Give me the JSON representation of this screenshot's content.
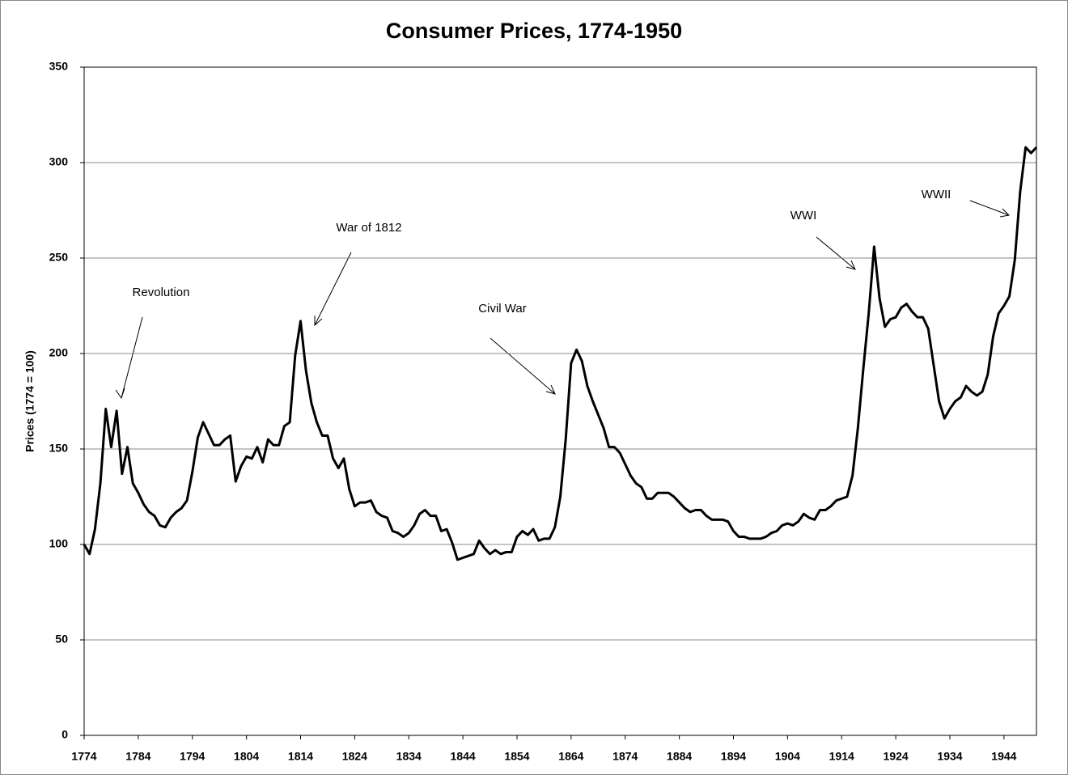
{
  "chart_data": {
    "type": "line",
    "title": "Consumer Prices, 1774-1950",
    "y_label": "Prices (1774 = 100)",
    "x": [
      1774,
      1775,
      1776,
      1777,
      1778,
      1779,
      1780,
      1781,
      1782,
      1783,
      1784,
      1785,
      1786,
      1787,
      1788,
      1789,
      1790,
      1791,
      1792,
      1793,
      1794,
      1795,
      1796,
      1797,
      1798,
      1799,
      1800,
      1801,
      1802,
      1803,
      1804,
      1805,
      1806,
      1807,
      1808,
      1809,
      1810,
      1811,
      1812,
      1813,
      1814,
      1815,
      1816,
      1817,
      1818,
      1819,
      1820,
      1821,
      1822,
      1823,
      1824,
      1825,
      1826,
      1827,
      1828,
      1829,
      1830,
      1831,
      1832,
      1833,
      1834,
      1835,
      1836,
      1837,
      1838,
      1839,
      1840,
      1841,
      1842,
      1843,
      1844,
      1845,
      1846,
      1847,
      1848,
      1849,
      1850,
      1851,
      1852,
      1853,
      1854,
      1855,
      1856,
      1857,
      1858,
      1859,
      1860,
      1861,
      1862,
      1863,
      1864,
      1865,
      1866,
      1867,
      1868,
      1869,
      1870,
      1871,
      1872,
      1873,
      1874,
      1875,
      1876,
      1877,
      1878,
      1879,
      1880,
      1881,
      1882,
      1883,
      1884,
      1885,
      1886,
      1887,
      1888,
      1889,
      1890,
      1891,
      1892,
      1893,
      1894,
      1895,
      1896,
      1897,
      1898,
      1899,
      1900,
      1901,
      1902,
      1903,
      1904,
      1905,
      1906,
      1907,
      1908,
      1909,
      1910,
      1911,
      1912,
      1913,
      1914,
      1915,
      1916,
      1917,
      1918,
      1919,
      1920,
      1921,
      1922,
      1923,
      1924,
      1925,
      1926,
      1927,
      1928,
      1929,
      1930,
      1931,
      1932,
      1933,
      1934,
      1935,
      1936,
      1937,
      1938,
      1939,
      1940,
      1941,
      1942,
      1943,
      1944,
      1945,
      1946,
      1947,
      1948,
      1949,
      1950
    ],
    "series": [
      {
        "name": "Consumer Prices",
        "color": "#000000",
        "values": [
          100,
          95,
          108,
          132,
          171,
          151,
          170,
          137,
          151,
          132,
          127,
          121,
          117,
          115,
          110,
          109,
          114,
          117,
          119,
          123,
          138,
          156,
          164,
          158,
          152,
          152,
          155,
          157,
          133,
          141,
          146,
          145,
          151,
          143,
          155,
          152,
          152,
          162,
          164,
          199,
          217,
          191,
          174,
          164,
          157,
          157,
          145,
          140,
          145,
          129,
          120,
          122,
          122,
          123,
          117,
          115,
          114,
          107,
          106,
          104,
          106,
          110,
          116,
          118,
          115,
          115,
          107,
          108,
          101,
          92,
          93,
          94,
          95,
          102,
          98,
          95,
          97,
          95,
          96,
          96,
          104,
          107,
          105,
          108,
          102,
          103,
          103,
          109,
          125,
          155,
          195,
          202,
          196,
          183,
          175,
          168,
          161,
          151,
          151,
          148,
          142,
          136,
          132,
          130,
          124,
          124,
          127,
          127,
          127,
          125,
          122,
          119,
          117,
          118,
          118,
          115,
          113,
          113,
          113,
          112,
          107,
          104,
          104,
          103,
          103,
          103,
          104,
          106,
          107,
          110,
          111,
          110,
          112,
          116,
          114,
          113,
          118,
          118,
          120,
          123,
          124,
          125,
          136,
          161,
          192,
          221,
          256,
          229,
          214,
          218,
          219,
          224,
          226,
          222,
          219,
          219,
          213,
          194,
          175,
          166,
          171,
          175,
          177,
          183,
          180,
          178,
          180,
          189,
          209,
          221,
          225,
          230,
          249,
          285,
          308,
          305,
          308
        ]
      }
    ],
    "xlim": [
      1774,
      1950
    ],
    "xticks": [
      1774,
      1784,
      1794,
      1804,
      1814,
      1824,
      1834,
      1844,
      1854,
      1864,
      1874,
      1884,
      1894,
      1904,
      1914,
      1924,
      1934,
      1944
    ],
    "ylim": [
      0,
      350
    ],
    "yticks": [
      0,
      50,
      100,
      150,
      200,
      250,
      300,
      350
    ],
    "grid": true,
    "annotations": [
      "Revolution",
      "War of 1812",
      "Civil War",
      "WWI",
      "WWII"
    ]
  }
}
